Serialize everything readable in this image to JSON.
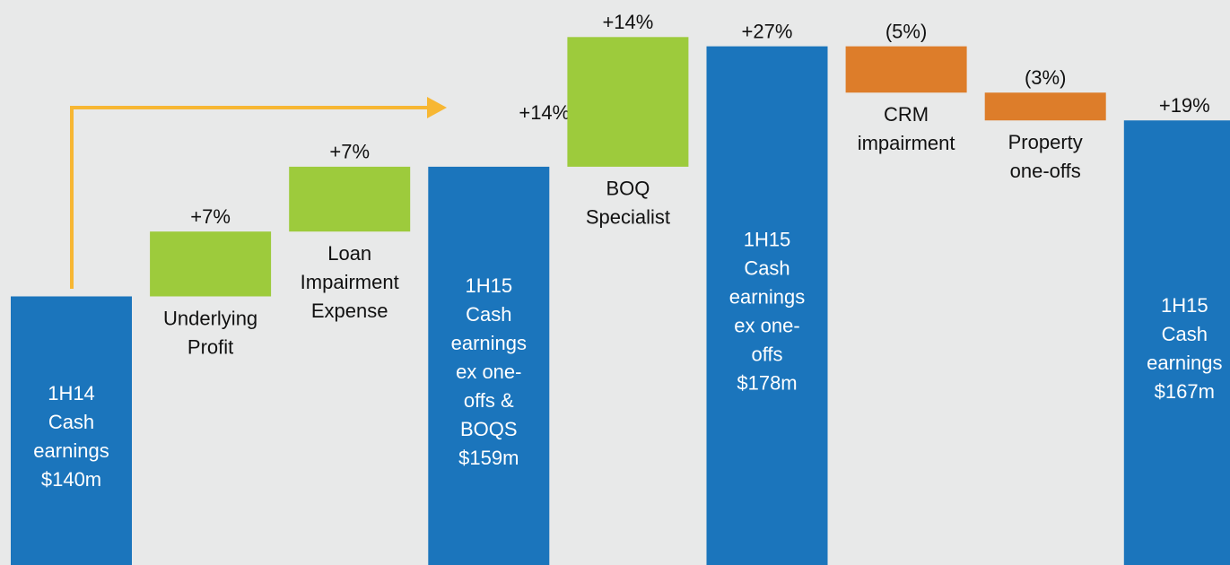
{
  "chart_data": {
    "type": "waterfall",
    "categories": [
      [
        "1H14",
        "Cash",
        "earnings",
        "$140m"
      ],
      [
        "Underlying",
        "Profit"
      ],
      [
        "Loan",
        "Impairment",
        "Expense"
      ],
      [
        "1H15",
        "Cash",
        "earnings",
        "ex one-",
        "offs &",
        "BOQS",
        "$159m"
      ],
      [
        "BOQ",
        "Specialist"
      ],
      [
        "1H15",
        "Cash",
        "earnings",
        "ex one-",
        "offs",
        "$178m"
      ],
      [
        "CRM",
        "impairment"
      ],
      [
        "Property",
        "one-offs"
      ],
      [
        "1H15",
        "Cash",
        "earnings",
        "$167m"
      ]
    ],
    "kinds": [
      "start",
      "step",
      "step",
      "total",
      "step",
      "total",
      "step",
      "step",
      "total"
    ],
    "values": [
      0,
      7,
      7,
      14,
      14,
      27,
      -5,
      -3,
      19
    ],
    "value_labels": [
      null,
      "+7%",
      "+7%",
      "+14%",
      "+14%",
      "+27%",
      "(5%)",
      "(3%)",
      "+19%"
    ],
    "colors": {
      "start": "#1b75bc",
      "total": "#1b75bc",
      "increase": "#9dcb3c",
      "decrease": "#dd7d2a"
    },
    "ylim": [
      -29,
      32
    ]
  }
}
